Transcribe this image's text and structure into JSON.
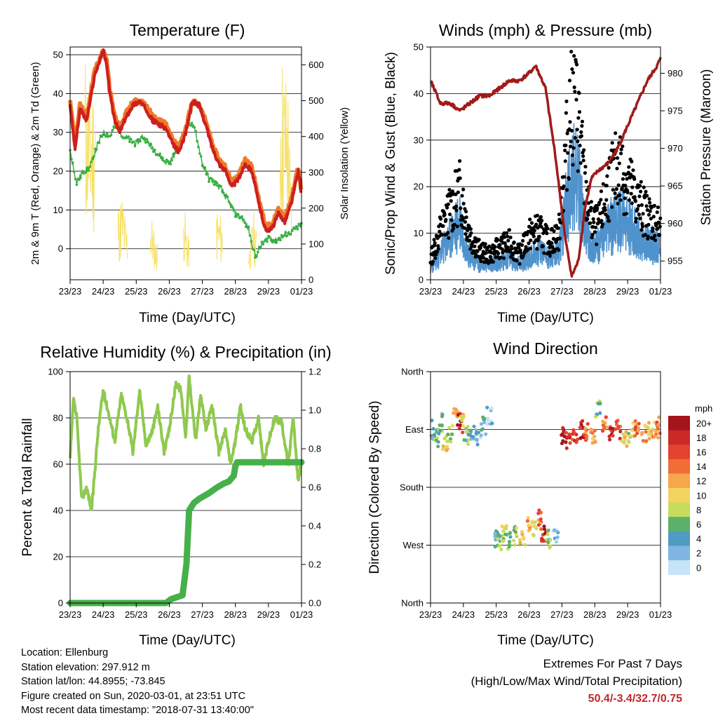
{
  "footer": {
    "location": "Location: Ellenburg",
    "elevation": "Station elevation: 297.912 m",
    "latlon": "Station lat/lon: 44.8955; -73.845",
    "created": "Figure created on Sun, 2020-03-01, at 23:51 UTC",
    "recent": "Most recent data timestamp: \"2018-07-31 13:40:00\""
  },
  "extremes": {
    "line1": "Extremes For Past 7 Days",
    "line2": "(High/Low/Max Wind/Total Precipitation)",
    "value": "50.4/-3.4/32.7/0.75"
  },
  "chart_data": [
    {
      "type": "line",
      "title": "Temperature (F)",
      "xlabel": "Time (Day/UTC)",
      "ylabel": "2m & 9m T (Red, Orange) & 2m Td (Green)",
      "y2label": "Solar Insolation (Yellow)",
      "xticks": [
        "23/23",
        "24/23",
        "25/23",
        "26/23",
        "27/23",
        "28/23",
        "29/23",
        "01/23"
      ],
      "ylim": [
        -8,
        52
      ],
      "yticks": [
        0,
        10,
        20,
        30,
        40,
        50
      ],
      "y2lim": [
        0,
        650
      ],
      "y2ticks": [
        0,
        100,
        200,
        300,
        400,
        500,
        600
      ],
      "grid": "horizontal",
      "series": [
        {
          "name": "2m T",
          "color": "#cc1f1f",
          "x": [
            0,
            0.15,
            0.3,
            0.5,
            0.75,
            1.0,
            1.1,
            1.2,
            1.35,
            1.5,
            1.7,
            1.9,
            2.1,
            2.3,
            2.5,
            2.7,
            2.9,
            3.1,
            3.3,
            3.5,
            3.7,
            3.9,
            4.1,
            4.3,
            4.5,
            4.7,
            4.9,
            5.1,
            5.3,
            5.5,
            5.7,
            5.9,
            6.1,
            6.3,
            6.5,
            6.7,
            6.9,
            7.0
          ],
          "y": [
            37,
            26,
            36,
            33,
            45,
            51,
            48,
            40,
            33,
            30,
            34,
            37,
            38,
            36,
            33,
            32,
            31,
            27,
            25,
            30,
            38,
            37,
            32,
            26,
            22,
            20,
            16,
            18,
            22,
            20,
            12,
            5,
            5,
            9,
            7,
            12,
            20,
            14
          ]
        },
        {
          "name": "9m T",
          "color": "#f07a28",
          "x": [
            0,
            0.15,
            0.3,
            0.5,
            0.75,
            1.0,
            1.1,
            1.2,
            1.35,
            1.5,
            1.7,
            1.9,
            2.1,
            2.3,
            2.5,
            2.7,
            2.9,
            3.1,
            3.3,
            3.5,
            3.7,
            3.9,
            4.1,
            4.3,
            4.5,
            4.7,
            4.9,
            5.1,
            5.3,
            5.5,
            5.7,
            5.9,
            6.1,
            6.3,
            6.5,
            6.7,
            6.9,
            7.0
          ],
          "y": [
            38,
            27,
            37,
            34,
            46,
            51,
            49,
            41,
            34,
            31,
            35,
            38,
            38,
            37,
            34,
            33,
            32,
            28,
            26,
            31,
            38,
            37,
            33,
            27,
            23,
            21,
            17,
            19,
            23,
            21,
            13,
            6,
            6,
            10,
            8,
            13,
            21,
            15
          ]
        },
        {
          "name": "2m Td",
          "color": "#3aae45",
          "x": [
            0,
            0.2,
            0.4,
            0.6,
            0.8,
            1.0,
            1.2,
            1.4,
            1.6,
            1.8,
            2.0,
            2.2,
            2.4,
            2.6,
            2.8,
            3.0,
            3.2,
            3.4,
            3.6,
            3.8,
            4.0,
            4.2,
            4.4,
            4.6,
            4.8,
            5.0,
            5.2,
            5.4,
            5.6,
            5.8,
            6.0,
            6.2,
            6.4,
            6.6,
            6.8,
            7.0
          ],
          "y": [
            25,
            17,
            20,
            21,
            26,
            30,
            29,
            32,
            29,
            28,
            27,
            29,
            27,
            25,
            23,
            22,
            25,
            29,
            33,
            30,
            22,
            18,
            17,
            15,
            12,
            9,
            8,
            5,
            -2,
            1,
            3,
            2,
            3,
            4,
            5,
            6
          ]
        },
        {
          "name": "Solar Insolation",
          "axis": "y2",
          "color": "#f7e066",
          "x": [
            0.48,
            0.62,
            0.74,
            1.48,
            1.58,
            1.7,
            2.46,
            2.6,
            3.45,
            3.55,
            4.44,
            4.6,
            5.42,
            5.55,
            5.62,
            6.38,
            6.5,
            6.6,
            6.66
          ],
          "y": [
            650,
            560,
            590,
            220,
            250,
            160,
            190,
            110,
            220,
            120,
            210,
            180,
            100,
            200,
            140,
            660,
            610,
            570,
            320
          ]
        }
      ]
    },
    {
      "type": "scatter",
      "title": "Winds (mph) & Pressure (mb)",
      "xlabel": "Time (Day/UTC)",
      "ylabel": "Sonic/Prop Wind & Gust (Blue, Black)",
      "y2label": "Station Pressure (Maroon)",
      "xticks": [
        "23/23",
        "24/23",
        "25/23",
        "26/23",
        "27/23",
        "28/23",
        "29/23",
        "01/23"
      ],
      "ylim": [
        0,
        50
      ],
      "yticks": [
        0,
        10,
        20,
        30,
        40,
        50
      ],
      "y2lim": [
        952.5,
        983.5
      ],
      "y2ticks": [
        955,
        960,
        965,
        970,
        975,
        980
      ],
      "grid": "horizontal",
      "series": [
        {
          "name": "Gust",
          "color": "#000000",
          "x": [
            0,
            0.3,
            0.6,
            0.9,
            1.2,
            1.5,
            1.8,
            2.1,
            2.4,
            2.7,
            3.0,
            3.3,
            3.6,
            3.9,
            4.1,
            4.3,
            4.5,
            4.7,
            4.9,
            5.1,
            5.4,
            5.7,
            6.0,
            6.3,
            6.6,
            6.9,
            7.0
          ],
          "y": [
            5,
            12,
            17,
            22,
            11,
            7,
            6,
            8,
            9,
            6,
            11,
            12,
            9,
            11,
            30,
            44,
            40,
            22,
            14,
            13,
            22,
            28,
            24,
            19,
            16,
            14,
            12
          ]
        },
        {
          "name": "Wind",
          "color": "#4f92cc",
          "x": [
            0,
            0.3,
            0.6,
            0.9,
            1.2,
            1.5,
            1.8,
            2.1,
            2.4,
            2.7,
            3.0,
            3.3,
            3.6,
            3.9,
            4.1,
            4.3,
            4.5,
            4.7,
            4.9,
            5.1,
            5.4,
            5.7,
            6.0,
            6.3,
            6.6,
            6.9,
            7.0
          ],
          "y": [
            3,
            7,
            11,
            16,
            6,
            4,
            4,
            5,
            6,
            4,
            6,
            8,
            6,
            7,
            18,
            28,
            25,
            14,
            9,
            9,
            13,
            17,
            15,
            12,
            10,
            9,
            7
          ]
        },
        {
          "name": "Station Pressure",
          "axis": "y2",
          "color": "#a01a1a",
          "x": [
            0,
            0.3,
            0.6,
            0.9,
            1.2,
            1.5,
            1.8,
            2.1,
            2.4,
            2.7,
            3.0,
            3.2,
            3.5,
            3.8,
            4.1,
            4.3,
            4.5,
            4.7,
            4.9,
            5.1,
            5.4,
            5.7,
            6.0,
            6.3,
            6.6,
            6.9,
            7.0
          ],
          "y": [
            979,
            976,
            976,
            975,
            976,
            977,
            977,
            978,
            979,
            979,
            980,
            981,
            978,
            969,
            958,
            953,
            955,
            962,
            966,
            967,
            968,
            970,
            973,
            976,
            979,
            981,
            982
          ]
        }
      ]
    },
    {
      "type": "line",
      "title": "Relative Humidity (%) & Precipitation (in)",
      "xlabel": "Time (Day/UTC)",
      "ylabel": "Percent & Total Rainfall",
      "xticks": [
        "23/23",
        "24/23",
        "25/23",
        "26/23",
        "27/23",
        "28/23",
        "29/23",
        "01/23"
      ],
      "ylim": [
        0,
        100
      ],
      "yticks": [
        0,
        20,
        40,
        60,
        80,
        100
      ],
      "y2lim": [
        0,
        1.2
      ],
      "y2ticks": [
        "0.0",
        "0.2",
        "0.4",
        "0.6",
        "0.8",
        "1.0",
        "1.2"
      ],
      "grid": "horizontal",
      "series": [
        {
          "name": "Relative Humidity",
          "color": "#8fc94f",
          "x": [
            0,
            0.1,
            0.2,
            0.35,
            0.5,
            0.65,
            0.85,
            1.0,
            1.2,
            1.35,
            1.55,
            1.75,
            1.9,
            2.1,
            2.3,
            2.5,
            2.65,
            2.85,
            3.0,
            3.2,
            3.35,
            3.5,
            3.6,
            3.8,
            3.95,
            4.1,
            4.3,
            4.5,
            4.7,
            4.85,
            5.0,
            5.15,
            5.3,
            5.5,
            5.7,
            5.85,
            6.0,
            6.2,
            6.4,
            6.6,
            6.75,
            6.9,
            7.0
          ],
          "y": [
            62,
            88,
            80,
            45,
            50,
            40,
            75,
            92,
            80,
            70,
            90,
            78,
            65,
            92,
            68,
            75,
            85,
            65,
            75,
            95,
            92,
            72,
            98,
            70,
            90,
            75,
            85,
            65,
            75,
            60,
            70,
            85,
            75,
            70,
            80,
            60,
            70,
            80,
            78,
            60,
            80,
            52,
            62
          ]
        },
        {
          "name": "Total Precipitation",
          "axis": "y2",
          "color": "#46b04a",
          "x": [
            0,
            1.0,
            2.0,
            2.9,
            3.05,
            3.4,
            3.52,
            3.6,
            3.75,
            3.9,
            4.2,
            4.45,
            4.65,
            4.8,
            4.95,
            5.0,
            5.05,
            6.0,
            7.0
          ],
          "y": [
            0,
            0,
            0,
            0,
            0.02,
            0.04,
            0.2,
            0.48,
            0.52,
            0.54,
            0.57,
            0.6,
            0.62,
            0.63,
            0.66,
            0.71,
            0.73,
            0.73,
            0.73
          ]
        }
      ]
    },
    {
      "type": "scatter",
      "title": "Wind Direction",
      "xlabel": "Time (Day/UTC)",
      "ylabel": "Direction (Colored By Speed)",
      "xticks": [
        "23/23",
        "24/23",
        "25/23",
        "26/23",
        "27/23",
        "28/23",
        "29/23",
        "01/23"
      ],
      "yticks": [
        "North",
        "West",
        "South",
        "East",
        "North"
      ],
      "grid": "horizontal",
      "legend": {
        "title": "mph",
        "position": "right",
        "labels": [
          "20+",
          "18",
          "16",
          "14",
          "12",
          "10",
          "8",
          "6",
          "4",
          "2",
          "0"
        ],
        "colors": [
          "#a3141c",
          "#c92a28",
          "#e4432f",
          "#f06d36",
          "#f8a64b",
          "#f3d35f",
          "#c7dc5a",
          "#5bb06a",
          "#4f9bc1",
          "#7fb6e2",
          "#c6e3f7"
        ]
      },
      "series": [
        {
          "name": "Direction",
          "x": [
            0.1,
            0.2,
            0.3,
            0.45,
            0.6,
            0.75,
            0.9,
            1.0,
            1.1,
            1.25,
            1.45,
            1.6,
            1.8,
            2.0,
            2.1,
            2.25,
            2.4,
            2.6,
            2.8,
            3.0,
            3.15,
            3.3,
            3.45,
            3.6,
            3.8,
            4.05,
            4.2,
            4.4,
            4.6,
            4.75,
            4.95,
            5.1,
            5.3,
            5.5,
            5.7,
            5.9,
            6.1,
            6.3,
            6.5,
            6.7,
            6.85,
            6.95
          ],
          "y": [
            270,
            255,
            280,
            245,
            265,
            300,
            280,
            285,
            260,
            270,
            255,
            275,
            290,
            100,
            90,
            110,
            95,
            105,
            100,
            120,
            115,
            130,
            110,
            100,
            105,
            260,
            255,
            265,
            270,
            268,
            262,
            300,
            275,
            265,
            270,
            258,
            265,
            275,
            262,
            270,
            268,
            275
          ],
          "speed": [
            4,
            6,
            6,
            10,
            8,
            14,
            18,
            10,
            6,
            4,
            2,
            4,
            2,
            4,
            6,
            8,
            6,
            8,
            10,
            12,
            10,
            14,
            18,
            6,
            2,
            20,
            18,
            16,
            18,
            14,
            12,
            6,
            14,
            18,
            16,
            10,
            8,
            14,
            12,
            10,
            12,
            14
          ]
        }
      ]
    }
  ]
}
